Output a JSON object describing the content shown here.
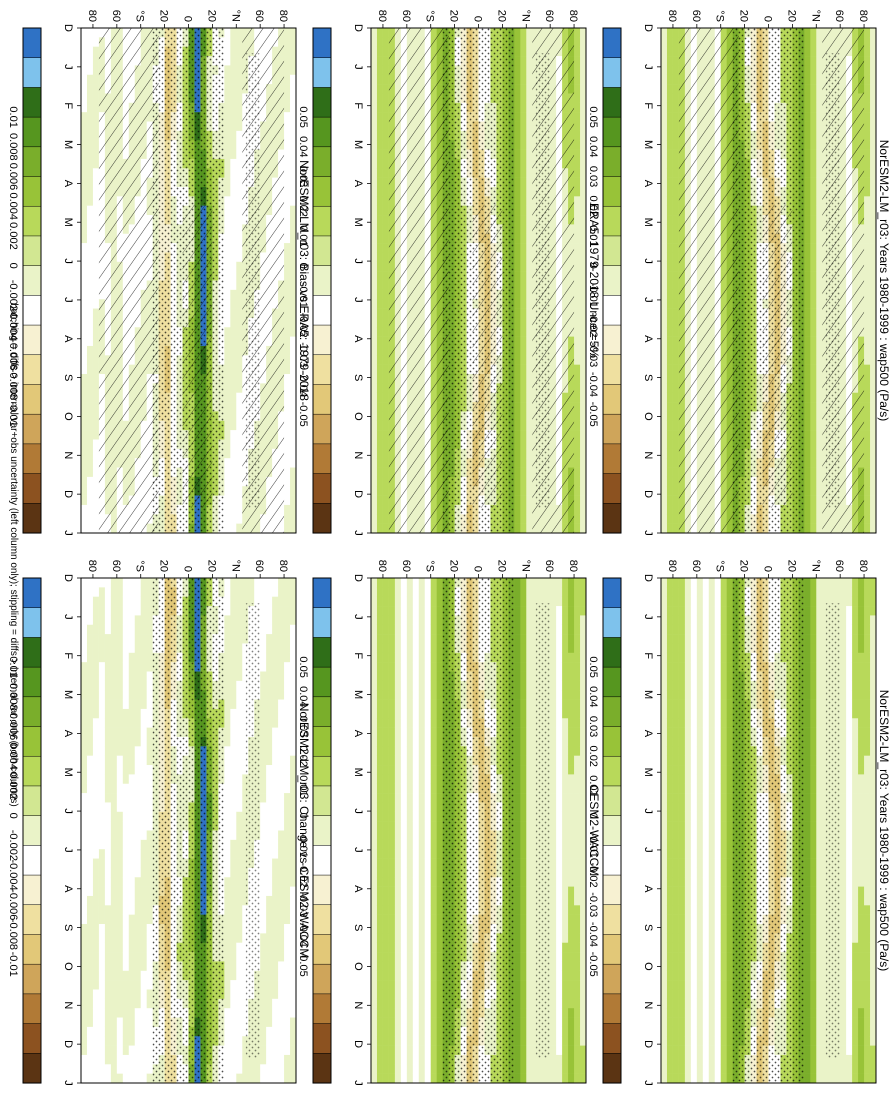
{
  "footer_note": "hatching = diffs > internal var+obs uncertainty (left column only); stippling = diffs > internal var only (both columns)",
  "colors": {
    "palette_levels": [
      "#2f72c5",
      "#7ec2ec",
      "#2f6e18",
      "#56961f",
      "#7aae2b",
      "#98c338",
      "#b8d95a",
      "#d2e792",
      "#eaf3c8",
      "#ffffff",
      "#f7f1d2",
      "#efe0a0",
      "#e2c878",
      "#cfa55a",
      "#b17a36",
      "#8c5220",
      "#5b3413"
    ],
    "background": "#ffffff"
  },
  "axes": {
    "month_ticks": [
      "D",
      "J",
      "F",
      "M",
      "A",
      "M",
      "J",
      "J",
      "A",
      "S",
      "O",
      "N",
      "D",
      "J"
    ],
    "lat_ticks": [
      "80",
      "60",
      "°N",
      "20",
      "0",
      "20",
      "°S",
      "60",
      "80"
    ]
  },
  "colorbars": {
    "large": [
      "0.05",
      "0.04",
      "0.03",
      "0.02",
      "0.01",
      "0",
      "-0.01",
      "-0.02",
      "-0.03",
      "-0.04",
      "-0.05"
    ],
    "small": [
      "0.01",
      "0.008",
      "0.006",
      "0.004",
      "0.002",
      "0",
      "-0.002",
      "-0.004",
      "-0.006",
      "-0.008",
      "-0.01"
    ]
  },
  "chart_data": [
    {
      "type": "heatmap",
      "panel": "top-left",
      "title": "NorESM2-LM_r03: Years 1980-1999 : wap500 (Pa/s)",
      "x_ticks": [
        "D",
        "J",
        "F",
        "M",
        "A",
        "M",
        "J",
        "J",
        "A",
        "S",
        "O",
        "N",
        "D",
        "J"
      ],
      "y_ticks": [
        "80",
        "60",
        "°N",
        "20",
        "0",
        "20",
        "°S",
        "60",
        "80"
      ],
      "colorbar_ticks": [
        "0.05",
        "0.04",
        "0.03",
        "0.02",
        "0.01",
        "0",
        "-0.01",
        "-0.02",
        "-0.03",
        "-0.04",
        "-0.05"
      ],
      "hatching": true,
      "stippling": true
    },
    {
      "type": "heatmap",
      "panel": "top-right",
      "title": "NorESM2-LM_r03: Years 1980-1999 : wap500 (Pa/s)",
      "x_ticks": [
        "D",
        "J",
        "F",
        "M",
        "A",
        "M",
        "J",
        "J",
        "A",
        "S",
        "O",
        "N",
        "D",
        "J"
      ],
      "y_ticks": [
        "80",
        "60",
        "°N",
        "20",
        "0",
        "20",
        "°S",
        "60",
        "80"
      ],
      "colorbar_ticks": [
        "0.05",
        "0.04",
        "0.03",
        "0.02",
        "0.01",
        "0",
        "-0.01",
        "-0.02",
        "-0.03",
        "-0.04",
        "-0.05"
      ],
      "hatching": false,
      "stippling": true
    },
    {
      "type": "heatmap",
      "panel": "middle-left",
      "title": "ERA5: 1979-2018 Uncer=5%",
      "x_ticks": [
        "D",
        "J",
        "F",
        "M",
        "A",
        "M",
        "J",
        "J",
        "A",
        "S",
        "O",
        "N",
        "D",
        "J"
      ],
      "y_ticks": [
        "80",
        "60",
        "°N",
        "20",
        "0",
        "20",
        "°S",
        "60",
        "80"
      ],
      "colorbar_ticks": [
        "0.05",
        "0.04",
        "0.03",
        "0.02",
        "0.01",
        "0",
        "-0.01",
        "-0.02",
        "-0.03",
        "-0.04",
        "-0.05"
      ],
      "hatching": true,
      "stippling": true
    },
    {
      "type": "heatmap",
      "panel": "middle-right",
      "title": "CESM2-WACCM",
      "x_ticks": [
        "D",
        "J",
        "F",
        "M",
        "A",
        "M",
        "J",
        "J",
        "A",
        "S",
        "O",
        "N",
        "D",
        "J"
      ],
      "y_ticks": [
        "80",
        "60",
        "°N",
        "20",
        "0",
        "20",
        "°S",
        "60",
        "80"
      ],
      "colorbar_ticks": [
        "0.05",
        "0.04",
        "0.03",
        "0.02",
        "0.01",
        "0",
        "-0.01",
        "-0.02",
        "-0.03",
        "-0.04",
        "-0.05"
      ],
      "hatching": false,
      "stippling": true
    },
    {
      "type": "heatmap",
      "panel": "bottom-left",
      "title": "NorESM2-LM_r03: Bias vs ERA5: 1979-2018",
      "x_ticks": [
        "D",
        "J",
        "F",
        "M",
        "A",
        "M",
        "J",
        "J",
        "A",
        "S",
        "O",
        "N",
        "D",
        "J"
      ],
      "y_ticks": [
        "80",
        "60",
        "°N",
        "20",
        "0",
        "20",
        "°S",
        "60",
        "80"
      ],
      "colorbar_ticks": [
        "0.01",
        "0.008",
        "0.006",
        "0.004",
        "0.002",
        "0",
        "-0.002",
        "-0.004",
        "-0.006",
        "-0.008",
        "-0.01"
      ],
      "hatching": true,
      "stippling": true
    },
    {
      "type": "heatmap",
      "panel": "bottom-right",
      "title": "NorESM2-LM_r03: Change vs CESM2-WACCM",
      "x_ticks": [
        "D",
        "J",
        "F",
        "M",
        "A",
        "M",
        "J",
        "J",
        "A",
        "S",
        "O",
        "N",
        "D",
        "J"
      ],
      "y_ticks": [
        "80",
        "60",
        "°N",
        "20",
        "0",
        "20",
        "°S",
        "60",
        "80"
      ],
      "colorbar_ticks": [
        "0.01",
        "0.008",
        "0.006",
        "0.004",
        "0.002",
        "0",
        "-0.002",
        "-0.004",
        "-0.006",
        "-0.008",
        "-0.01"
      ],
      "hatching": false,
      "stippling": true
    }
  ]
}
